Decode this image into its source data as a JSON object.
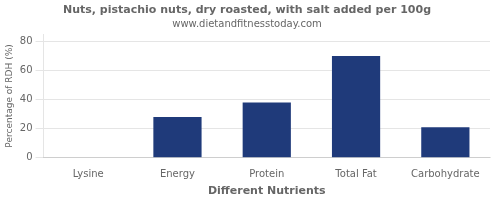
{
  "chart_data": {
    "type": "bar",
    "title": "Nuts, pistachio nuts, dry roasted, with salt added per 100g",
    "subtitle": "www.dietandfitnesstoday.com",
    "xlabel": "Different Nutrients",
    "ylabel": "Percentage of RDH (%)",
    "categories": [
      "Lysine",
      "Energy",
      "Protein",
      "Total Fat",
      "Carbohydrate"
    ],
    "values": [
      0,
      28,
      38,
      70,
      21
    ],
    "color": "#1f3a7a",
    "ylim": [
      0,
      85
    ],
    "yticks": [
      0,
      20,
      40,
      60,
      80
    ],
    "grid": true
  }
}
